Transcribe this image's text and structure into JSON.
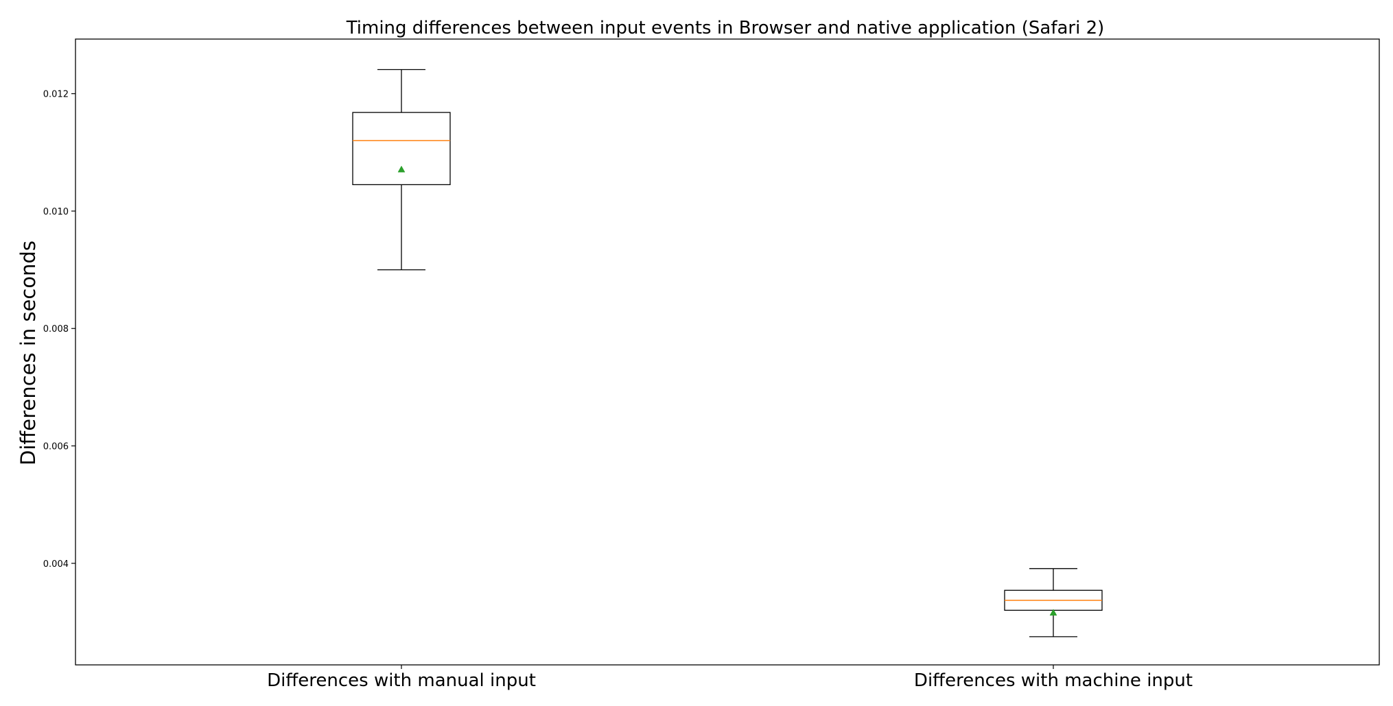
{
  "chart_data": {
    "type": "boxplot",
    "title": "Timing differences between input events in Browser and native application (Safari 2)",
    "xlabel": "",
    "ylabel": "Differences in seconds",
    "categories": [
      "Differences with manual input",
      "Differences with machine input"
    ],
    "boxes": [
      {
        "whisker_low": 0.009,
        "q1": 0.01045,
        "median": 0.0112,
        "q3": 0.01168,
        "whisker_high": 0.01241,
        "mean": 0.01071
      },
      {
        "whisker_low": 0.00275,
        "q1": 0.0032,
        "median": 0.00337,
        "q3": 0.00354,
        "whisker_high": 0.00391,
        "mean": 0.00316
      }
    ],
    "yticks": [
      0.004,
      0.006,
      0.008,
      0.01,
      0.012
    ],
    "ytick_labels": [
      "0.004",
      "0.006",
      "0.008",
      "0.010",
      "0.012"
    ],
    "ylim": [
      0.00227,
      0.01293
    ],
    "grid": false,
    "legend": "none",
    "colors": {
      "box": "#000000",
      "median": "#ff7f0e",
      "mean": "#2ca02c",
      "axes": "#000000",
      "background": "#ffffff"
    }
  }
}
